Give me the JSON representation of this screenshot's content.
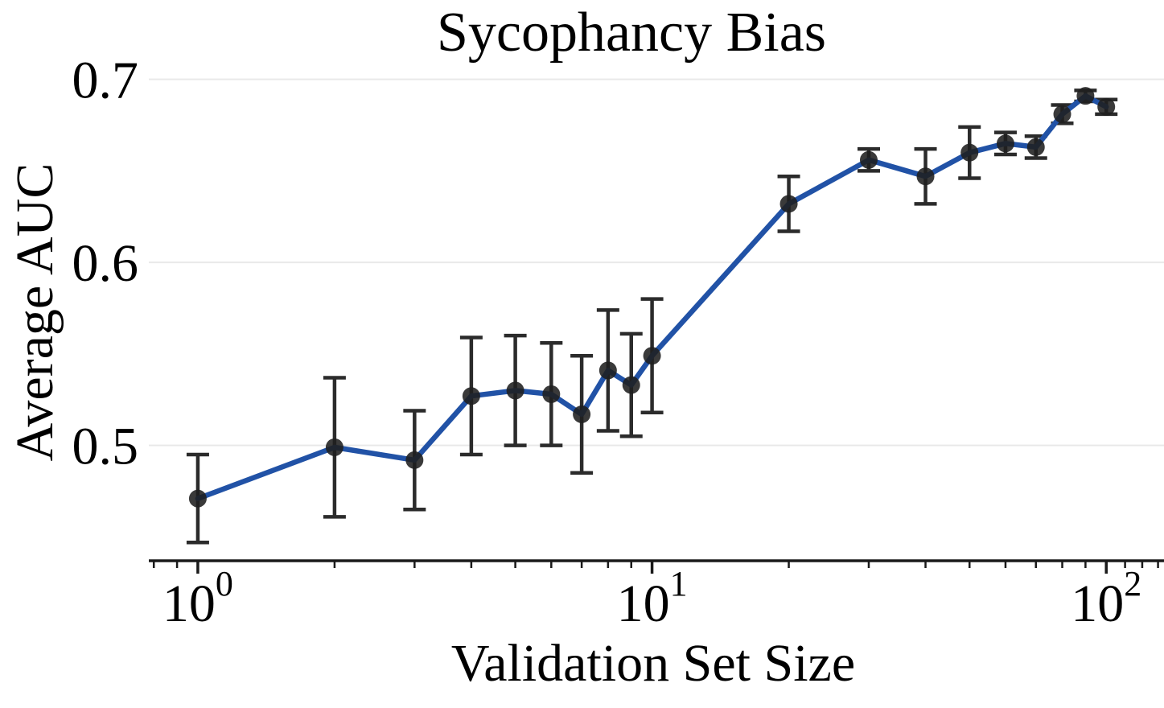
{
  "chart_data": {
    "type": "line",
    "title": "Sycophancy Bias",
    "xlabel": "Validation Set Size",
    "ylabel": "Average AUC",
    "x_scale": "log",
    "grid": "horizontal",
    "legend": "none",
    "x": [
      1,
      2,
      3,
      4,
      5,
      6,
      7,
      8,
      9,
      10,
      20,
      30,
      40,
      50,
      60,
      70,
      80,
      90,
      100
    ],
    "y": [
      0.471,
      0.499,
      0.492,
      0.527,
      0.53,
      0.528,
      0.517,
      0.541,
      0.533,
      0.549,
      0.632,
      0.656,
      0.647,
      0.66,
      0.665,
      0.663,
      0.681,
      0.691,
      0.685
    ],
    "y_err": [
      0.024,
      0.038,
      0.027,
      0.032,
      0.03,
      0.028,
      0.032,
      0.033,
      0.028,
      0.031,
      0.015,
      0.006,
      0.015,
      0.014,
      0.006,
      0.006,
      0.005,
      0.003,
      0.004
    ],
    "xlim": [
      0.78,
      134
    ],
    "ylim": [
      0.437,
      0.717
    ],
    "yticks": [
      {
        "value": 0.5,
        "label": "0.5"
      },
      {
        "value": 0.6,
        "label": "0.6"
      },
      {
        "value": 0.7,
        "label": "0.7"
      }
    ],
    "xticks_major": [
      {
        "value": 1,
        "base": "10",
        "exp": "0"
      },
      {
        "value": 10,
        "base": "10",
        "exp": "1"
      },
      {
        "value": 100,
        "base": "10",
        "exp": "2"
      }
    ],
    "xticks_minor": [
      0.8,
      0.9,
      2,
      3,
      4,
      5,
      6,
      7,
      8,
      9,
      20,
      30,
      40,
      50,
      60,
      70,
      80,
      90,
      110,
      120,
      130
    ],
    "colors": {
      "line": "#2152a6",
      "marker": "#1f1f1f",
      "error_bar": "#2b2b2b",
      "grid": "#e9e9e9",
      "axis": "#1a1a1a",
      "text": "#000000",
      "background": "#ffffff"
    }
  }
}
